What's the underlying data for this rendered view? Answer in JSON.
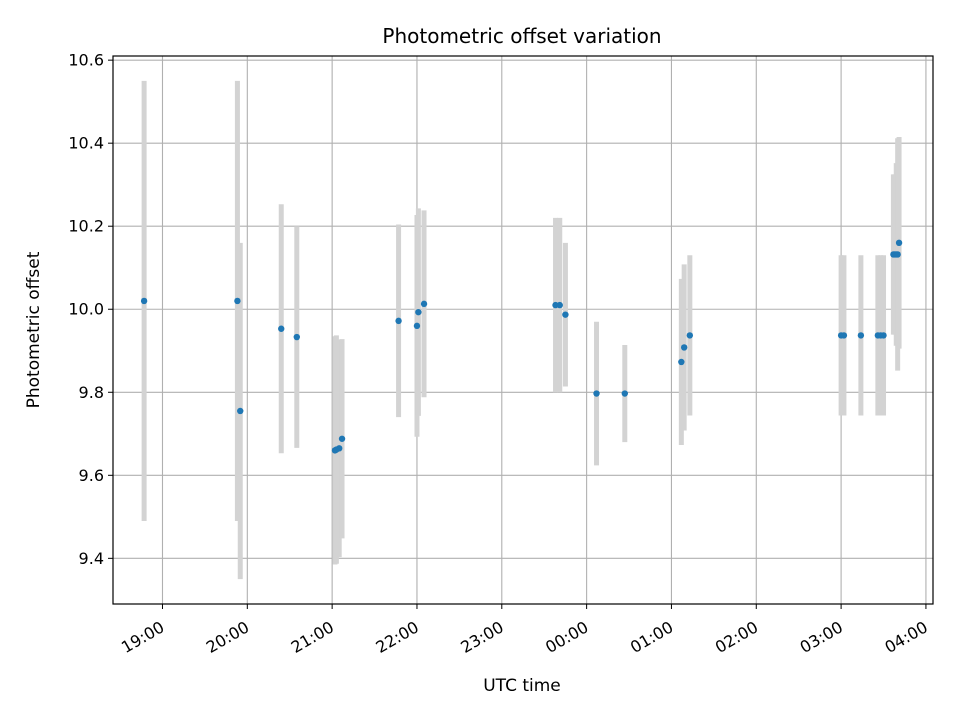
{
  "chart_data": {
    "type": "scatter",
    "title": "Photometric offset variation",
    "xlabel": "UTC time",
    "ylabel": "Photometric offset",
    "grid": true,
    "xlim": [
      "18:25",
      "04:05"
    ],
    "ylim": [
      9.29,
      10.61
    ],
    "x_ticks": [
      "19:00",
      "20:00",
      "21:00",
      "22:00",
      "23:00",
      "00:00",
      "01:00",
      "02:00",
      "03:00",
      "04:00"
    ],
    "y_ticks": [
      9.4,
      9.6,
      9.8,
      10.0,
      10.2,
      10.4,
      10.6
    ],
    "y_tick_labels": [
      "9.4",
      "9.6",
      "9.8",
      "10.0",
      "10.2",
      "10.4",
      "10.6"
    ],
    "colors": {
      "point": "#1f77b4",
      "errorbar": "#d3d3d3",
      "grid": "#b0b0b0"
    },
    "points": [
      {
        "x": "18:47",
        "y": 10.02,
        "yerr": 0.53
      },
      {
        "x": "19:53",
        "y": 10.02,
        "yerr": 0.53
      },
      {
        "x": "19:55",
        "y": 9.755,
        "yerr": 0.405
      },
      {
        "x": "20:24",
        "y": 9.953,
        "yerr": 0.3
      },
      {
        "x": "20:35",
        "y": 9.933,
        "yerr": 0.267
      },
      {
        "x": "21:02",
        "y": 9.66,
        "yerr": 0.275
      },
      {
        "x": "21:03",
        "y": 9.662,
        "yerr": 0.275
      },
      {
        "x": "21:05",
        "y": 9.665,
        "yerr": 0.262
      },
      {
        "x": "21:07",
        "y": 9.688,
        "yerr": 0.24
      },
      {
        "x": "21:47",
        "y": 9.972,
        "yerr": 0.232
      },
      {
        "x": "22:00",
        "y": 9.96,
        "yerr": 0.267
      },
      {
        "x": "22:01",
        "y": 9.993,
        "yerr": 0.25
      },
      {
        "x": "22:05",
        "y": 10.013,
        "yerr": 0.225
      },
      {
        "x": "23:38",
        "y": 10.01,
        "yerr": 0.21
      },
      {
        "x": "23:41",
        "y": 10.01,
        "yerr": 0.21
      },
      {
        "x": "23:45",
        "y": 9.987,
        "yerr": 0.173
      },
      {
        "x": "00:07",
        "y": 9.797,
        "yerr": 0.173
      },
      {
        "x": "00:27",
        "y": 9.797,
        "yerr": 0.117
      },
      {
        "x": "01:07",
        "y": 9.873,
        "yerr": 0.2
      },
      {
        "x": "01:09",
        "y": 9.908,
        "yerr": 0.2
      },
      {
        "x": "01:13",
        "y": 9.937,
        "yerr": 0.193
      },
      {
        "x": "03:00",
        "y": 9.937,
        "yerr": 0.193
      },
      {
        "x": "03:02",
        "y": 9.937,
        "yerr": 0.193
      },
      {
        "x": "03:14",
        "y": 9.937,
        "yerr": 0.193
      },
      {
        "x": "03:26",
        "y": 9.937,
        "yerr": 0.193
      },
      {
        "x": "03:28",
        "y": 9.937,
        "yerr": 0.193
      },
      {
        "x": "03:30",
        "y": 9.937,
        "yerr": 0.193
      },
      {
        "x": "03:37",
        "y": 10.132,
        "yerr": 0.193
      },
      {
        "x": "03:38",
        "y": 10.132,
        "yerr": 0.193
      },
      {
        "x": "03:39",
        "y": 10.132,
        "yerr": 0.22
      },
      {
        "x": "03:40",
        "y": 10.132,
        "yerr": 0.28
      },
      {
        "x": "03:41",
        "y": 10.16,
        "yerr": 0.255
      }
    ]
  }
}
